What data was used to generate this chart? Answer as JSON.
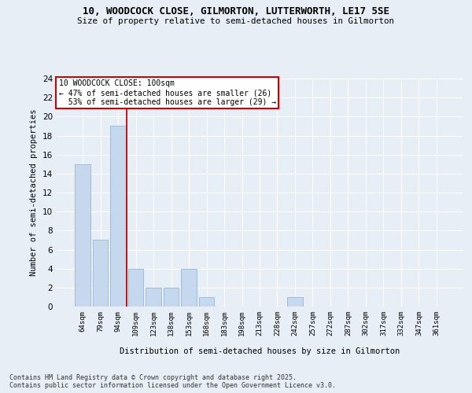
{
  "title_line1": "10, WOODCOCK CLOSE, GILMORTON, LUTTERWORTH, LE17 5SE",
  "title_line2": "Size of property relative to semi-detached houses in Gilmorton",
  "categories": [
    "64sqm",
    "79sqm",
    "94sqm",
    "109sqm",
    "123sqm",
    "138sqm",
    "153sqm",
    "168sqm",
    "183sqm",
    "198sqm",
    "213sqm",
    "228sqm",
    "242sqm",
    "257sqm",
    "272sqm",
    "287sqm",
    "302sqm",
    "317sqm",
    "332sqm",
    "347sqm",
    "361sqm"
  ],
  "values": [
    15,
    7,
    19,
    4,
    2,
    2,
    4,
    1,
    0,
    0,
    0,
    0,
    1,
    0,
    0,
    0,
    0,
    0,
    0,
    0,
    0
  ],
  "bar_color": "#c5d8ee",
  "bar_edgecolor": "#a0bcd8",
  "background_color": "#e8eef5",
  "grid_color": "#ffffff",
  "ylabel": "Number of semi-detached properties",
  "xlabel": "Distribution of semi-detached houses by size in Gilmorton",
  "ylim": [
    0,
    24
  ],
  "yticks": [
    0,
    2,
    4,
    6,
    8,
    10,
    12,
    14,
    16,
    18,
    20,
    22,
    24
  ],
  "property_line_x": 2.5,
  "property_size": "100sqm",
  "property_name": "10 WOODCOCK CLOSE",
  "pct_smaller": 47,
  "n_smaller": 26,
  "pct_larger": 53,
  "n_larger": 29,
  "annotation_box_color": "#ffffff",
  "annotation_box_edgecolor": "#cc0000",
  "vline_color": "#cc0000",
  "footer_line1": "Contains HM Land Registry data © Crown copyright and database right 2025.",
  "footer_line2": "Contains public sector information licensed under the Open Government Licence v3.0."
}
